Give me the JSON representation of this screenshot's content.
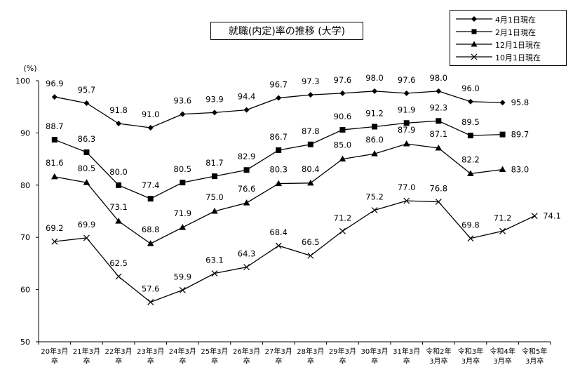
{
  "chart_data": {
    "type": "line",
    "title": "就職(内定)率の推移 (大学)",
    "ylabel": "(%)",
    "ylim": [
      50,
      100
    ],
    "yticks": [
      50,
      60,
      70,
      80,
      90,
      100
    ],
    "grid": false,
    "legend_position": "top-right",
    "categories": [
      [
        "20年3月",
        "卒"
      ],
      [
        "21年3月",
        "卒"
      ],
      [
        "22年3月",
        "卒"
      ],
      [
        "23年3月",
        "卒"
      ],
      [
        "24年3月",
        "卒"
      ],
      [
        "25年3月",
        "卒"
      ],
      [
        "26年3月",
        "卒"
      ],
      [
        "27年3月",
        "卒"
      ],
      [
        "28年3月",
        "卒"
      ],
      [
        "29年3月",
        "卒"
      ],
      [
        "30年3月",
        "卒"
      ],
      [
        "31年3月",
        "卒"
      ],
      [
        "令和2年",
        "3月卒"
      ],
      [
        "令和3年",
        "3月卒"
      ],
      [
        "令和4年",
        "3月卒"
      ],
      [
        "令和5年",
        "3月卒"
      ]
    ],
    "series": [
      {
        "name": "4月1日現在",
        "marker": "diamond",
        "values": [
          96.9,
          95.7,
          91.8,
          91.0,
          93.6,
          93.9,
          94.4,
          96.7,
          97.3,
          97.6,
          98.0,
          97.6,
          98.0,
          96.0,
          95.8,
          null
        ]
      },
      {
        "name": "2月1日現在",
        "marker": "square",
        "values": [
          88.7,
          86.3,
          80.0,
          77.4,
          80.5,
          81.7,
          82.9,
          86.7,
          87.8,
          90.6,
          91.2,
          91.9,
          92.3,
          89.5,
          89.7,
          null
        ]
      },
      {
        "name": "12月1日現在",
        "marker": "triangle",
        "values": [
          81.6,
          80.5,
          73.1,
          68.8,
          71.9,
          75.0,
          76.6,
          80.3,
          80.4,
          85.0,
          86.0,
          87.9,
          87.1,
          82.2,
          83.0,
          null
        ]
      },
      {
        "name": "10月1日現在",
        "marker": "x",
        "values": [
          69.2,
          69.9,
          62.5,
          57.6,
          59.9,
          63.1,
          64.3,
          68.4,
          66.5,
          71.2,
          75.2,
          77.0,
          76.8,
          69.8,
          71.2,
          74.1
        ]
      }
    ],
    "labels": [
      [
        "96.9",
        "95.7",
        "91.8",
        "91.0",
        "93.6",
        "93.9",
        "94.4",
        "96.7",
        "97.3",
        "97.6",
        "98.0",
        "97.6",
        "98.0",
        "96.0",
        "95.8",
        null
      ],
      [
        "88.7",
        "86.3",
        "80.0",
        "77.4",
        "80.5",
        "81.7",
        "82.9",
        "86.7",
        "87.8",
        "90.6",
        "91.2",
        "91.9",
        "92.3",
        "89.5",
        "89.7",
        null
      ],
      [
        "81.6",
        "80.5",
        "73.1",
        "68.8",
        "71.9",
        "75.0",
        "76.6",
        "80.3",
        "80.4",
        "85.0",
        "86.0",
        "87.9",
        "87.1",
        "82.2",
        "83.0",
        null
      ],
      [
        "69.2",
        "69.9",
        "62.5",
        "57.6",
        "59.9",
        "63.1",
        "64.3",
        "68.4",
        "66.5",
        "71.2",
        "75.2",
        "77.0",
        "76.8",
        "69.8",
        "71.2",
        "74.1"
      ]
    ]
  }
}
